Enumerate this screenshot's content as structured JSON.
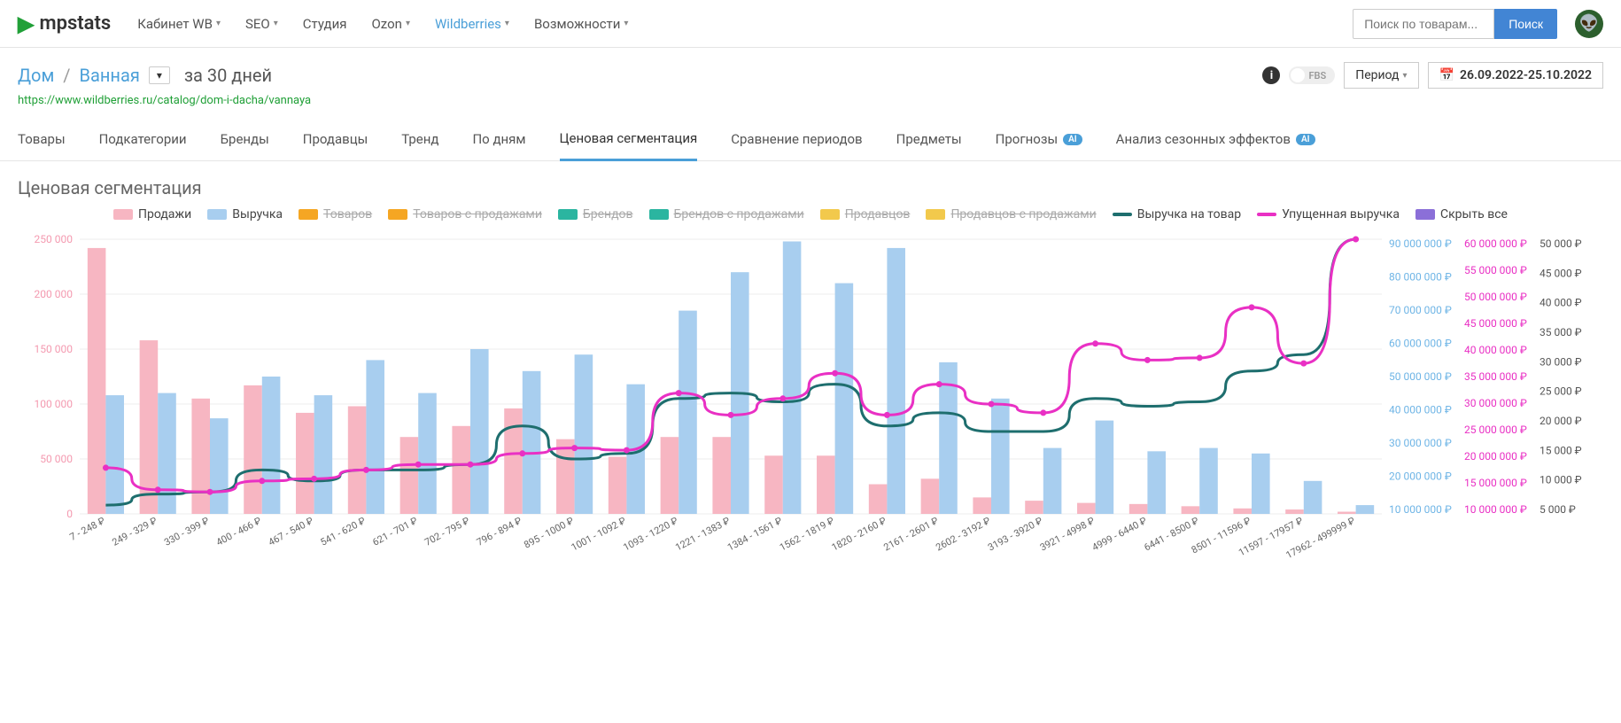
{
  "brand": "mpstats",
  "nav": [
    {
      "label": "Кабинет WB",
      "dd": true,
      "active": false
    },
    {
      "label": "SEO",
      "dd": true,
      "active": false
    },
    {
      "label": "Студия",
      "dd": false,
      "active": false
    },
    {
      "label": "Ozon",
      "dd": true,
      "active": false
    },
    {
      "label": "Wildberries",
      "dd": true,
      "active": true
    },
    {
      "label": "Возможности",
      "dd": true,
      "active": false
    }
  ],
  "search": {
    "placeholder": "Поиск по товарам...",
    "button": "Поиск"
  },
  "breadcrumb": {
    "root": "Дом",
    "current": "Ванная",
    "period_text": "за 30 дней"
  },
  "url": "https://www.wildberries.ru/catalog/dom-i-dacha/vannaya",
  "controls": {
    "fbs": "FBS",
    "period_label": "Период",
    "date_range": "26.09.2022-25.10.2022"
  },
  "tabs": [
    "Товары",
    "Подкатегории",
    "Бренды",
    "Продавцы",
    "Тренд",
    "По дням",
    "Ценовая сегментация",
    "Сравнение периодов",
    "Предметы",
    "Прогнозы",
    "Анализ сезонных эффектов"
  ],
  "tabs_ai": [
    9,
    10
  ],
  "active_tab": 6,
  "section_title": "Ценовая сегментация",
  "legend": [
    {
      "label": "Продажи",
      "color": "#f7b6c2",
      "type": "bar",
      "off": false
    },
    {
      "label": "Выручка",
      "color": "#a8ceef",
      "type": "bar",
      "off": false
    },
    {
      "label": "Товаров",
      "color": "#f5a623",
      "type": "bar",
      "off": true
    },
    {
      "label": "Товаров с продажами",
      "color": "#f5a623",
      "type": "bar",
      "off": true
    },
    {
      "label": "Брендов",
      "color": "#2bb5a0",
      "type": "bar",
      "off": true
    },
    {
      "label": "Брендов с продажами",
      "color": "#2bb5a0",
      "type": "bar",
      "off": true
    },
    {
      "label": "Продавцов",
      "color": "#f2c94c",
      "type": "bar",
      "off": true
    },
    {
      "label": "Продавцов с продажами",
      "color": "#f2c94c",
      "type": "bar",
      "off": true
    },
    {
      "label": "Выручка на товар",
      "color": "#1e6e6e",
      "type": "line",
      "off": false
    },
    {
      "label": "Упущенная выручка",
      "color": "#e930c4",
      "type": "line",
      "off": false
    },
    {
      "label": "Скрыть все",
      "color": "#8b6fd8",
      "type": "bar",
      "off": false
    }
  ],
  "chart": {
    "categories": [
      "7 - 248 ₽",
      "249 - 329 ₽",
      "330 - 399 ₽",
      "400 - 466 ₽",
      "467 - 540 ₽",
      "541 - 620 ₽",
      "621 - 701 ₽",
      "702 - 795 ₽",
      "796 - 894 ₽",
      "895 - 1000 ₽",
      "1001 - 1092 ₽",
      "1093 - 1220 ₽",
      "1221 - 1383 ₽",
      "1384 - 1561 ₽",
      "1562 - 1819 ₽",
      "1820 - 2160 ₽",
      "2161 - 2601 ₽",
      "2602 - 3192 ₽",
      "3193 - 3920 ₽",
      "3921 - 4998 ₽",
      "4999 - 6440 ₽",
      "6441 - 8500 ₽",
      "8501 - 11596 ₽",
      "11597 - 17957 ₽",
      "17962 - 499999 ₽"
    ],
    "sales": [
      242000,
      158000,
      105000,
      117000,
      92000,
      98000,
      70000,
      80000,
      96000,
      68000,
      52000,
      70000,
      70000,
      53000,
      53000,
      27000,
      32000,
      15000,
      12000,
      10000,
      9000,
      7000,
      5000,
      4000,
      2000
    ],
    "revenue": [
      108000,
      110000,
      87000,
      125000,
      108000,
      140000,
      110000,
      150000,
      130000,
      145000,
      118000,
      185000,
      220000,
      248000,
      210000,
      242000,
      138000,
      105000,
      60000,
      85000,
      57000,
      60000,
      55000,
      30000,
      8000
    ],
    "rev_per_item": [
      8000,
      18000,
      20000,
      40000,
      30000,
      40000,
      40000,
      45000,
      80000,
      50000,
      55000,
      105000,
      110000,
      102000,
      118000,
      80000,
      92000,
      75000,
      75000,
      105000,
      98000,
      102000,
      130000,
      145000,
      250000
    ],
    "missed": [
      42000,
      22000,
      20000,
      30000,
      32000,
      40000,
      45000,
      45000,
      55000,
      60000,
      58000,
      110000,
      90000,
      105000,
      128000,
      90000,
      118000,
      100000,
      92000,
      155000,
      140000,
      142000,
      188000,
      137000,
      250000
    ],
    "y_left": {
      "max": 250000,
      "step": 50000,
      "labels": [
        "0",
        "50 000",
        "100 000",
        "150 000",
        "200 000",
        "250 000"
      ],
      "color": "#f49ab0"
    },
    "y_r1": {
      "labels": [
        "10 000 000 ₽",
        "20 000 000 ₽",
        "30 000 000 ₽",
        "40 000 000 ₽",
        "50 000 000 ₽",
        "60 000 000 ₽",
        "70 000 000 ₽",
        "80 000 000 ₽",
        "90 000 000 ₽"
      ],
      "color": "#6fb5e6"
    },
    "y_r2": {
      "labels": [
        "10 000 000 ₽",
        "15 000 000 ₽",
        "20 000 000 ₽",
        "25 000 000 ₽",
        "30 000 000 ₽",
        "35 000 000 ₽",
        "40 000 000 ₽",
        "45 000 000 ₽",
        "50 000 000 ₽",
        "55 000 000 ₽",
        "60 000 000 ₽"
      ],
      "color": "#e930c4"
    },
    "y_r3": {
      "labels": [
        "5 000 ₽",
        "10 000 ₽",
        "15 000 ₽",
        "20 000 ₽",
        "25 000 ₽",
        "30 000 ₽",
        "35 000 ₽",
        "40 000 ₽",
        "45 000 ₽",
        "50 000 ₽"
      ],
      "color": "#555"
    },
    "colors": {
      "sales": "#f7b6c2",
      "revenue": "#a8ceef",
      "rev_per_item": "#1e6e6e",
      "missed": "#e930c4",
      "grid": "#eee"
    }
  }
}
